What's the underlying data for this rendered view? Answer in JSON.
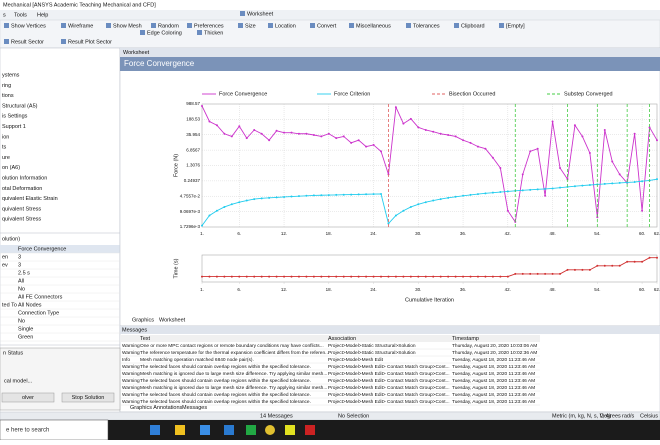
{
  "window": {
    "title": "Mechanical [ANSYS Academic Teaching Mechanical and CFD]"
  },
  "menu": [
    "s",
    "Tools",
    "Help"
  ],
  "toolbar_rows": [
    [
      "Worksheet"
    ],
    [
      "Show Vertices",
      "Wireframe",
      "Show Mesh",
      "Random",
      "Preferences",
      "Size",
      "Location",
      "Convert",
      "Miscellaneous",
      "Tolerances",
      "Clipboard",
      "[Empty]"
    ],
    [
      "Edge Coloring",
      "Thicken"
    ],
    [
      "Result Sector",
      "Result Plot Sector"
    ]
  ],
  "outline": [
    "ystems",
    "ring",
    "tions",
    "Structural (A5)",
    "is Settings",
    "Support 1",
    "ion",
    "ts",
    "ure",
    "on (A6)",
    "olution Information",
    "otal Deformation",
    "quivalent Elastic Strain",
    "quivalent Stress",
    "quivalent Stress"
  ],
  "details": {
    "title": "olution)",
    "rows": [
      {
        "value": "Force Convergence"
      },
      {
        "label": "en",
        "value": "3"
      },
      {
        "label": "ev",
        "value": "3"
      },
      {
        "value": "2.5 s"
      },
      {
        "value": "All"
      },
      {
        "value": "No"
      },
      {
        "value": "All FE Connectors"
      },
      {
        "label": "ted To",
        "value": "All Nodes"
      },
      {
        "value": "Connection Type"
      },
      {
        "value": "No"
      },
      {
        "value": "Single"
      },
      {
        "value": "Green"
      }
    ]
  },
  "dialog": {
    "title": "n Status",
    "text": "cal model...",
    "buttons": [
      "olver",
      "Stop Solution"
    ]
  },
  "worksheet_tab": "Worksheet",
  "chart_data": [
    {
      "type": "line",
      "title": "Force Convergence",
      "ylabel": "Force (N)",
      "log_y": true,
      "grid": true,
      "legend": "top",
      "x": [
        1,
        2,
        3,
        4,
        5,
        6,
        7,
        8,
        9,
        10,
        11,
        12,
        13,
        14,
        15,
        16,
        17,
        18,
        19,
        20,
        21,
        22,
        23,
        24,
        25,
        26,
        27,
        28,
        29,
        30,
        31,
        32,
        33,
        34,
        35,
        36,
        37,
        38,
        39,
        40,
        41,
        42,
        43,
        44,
        45,
        46,
        47,
        48,
        49,
        50,
        51,
        52,
        53,
        54,
        55,
        56,
        57,
        58,
        59,
        60,
        61,
        62
      ],
      "xlim": [
        1,
        62
      ],
      "xticks": [
        {
          "value": 1,
          "label": "1."
        },
        {
          "value": 6,
          "label": "6."
        },
        {
          "value": 12,
          "label": "12."
        },
        {
          "value": 18,
          "label": "18."
        },
        {
          "value": 24,
          "label": "24."
        },
        {
          "value": 30,
          "label": "30."
        },
        {
          "value": 36,
          "label": "36."
        },
        {
          "value": 42,
          "label": "42."
        },
        {
          "value": 48,
          "label": "48."
        },
        {
          "value": 54,
          "label": "54."
        },
        {
          "value": 60,
          "label": "60."
        },
        {
          "value": 62,
          "label": "62."
        }
      ],
      "ylim": [
        0.0017296,
        988.57
      ],
      "yticks": [
        {
          "value": 0.0017296,
          "label": "1.7296e-3"
        },
        {
          "value": 0.0090697,
          "label": "9.0697e-3"
        },
        {
          "value": 0.047557,
          "label": "4.7557e-2"
        },
        0.24937,
        1.3076,
        6.8567,
        35.954,
        188.53,
        988.57
      ],
      "series": [
        {
          "name": "Force Convergence",
          "color": "#cc33cc",
          "markers": true,
          "values": [
            800,
            150,
            100,
            40,
            30,
            90,
            25,
            60,
            40,
            20,
            55,
            45,
            45,
            40,
            40,
            35,
            30,
            40,
            25,
            30,
            15,
            20,
            10,
            12,
            6,
            0.5,
            700,
            120,
            200,
            80,
            60,
            50,
            40,
            35,
            30,
            20,
            15,
            10,
            8,
            3,
            1,
            0.01,
            0.003,
            0.5,
            6,
            8,
            0.05,
            150,
            1,
            0.3,
            100,
            30,
            5,
            0.005,
            60,
            2,
            0.5,
            0.2,
            40,
            0.01,
            80,
            20
          ]
        },
        {
          "name": "Force Criterion",
          "color": "#22ccee",
          "markers": true,
          "values": [
            0.002,
            0.006,
            0.01,
            0.015,
            0.02,
            0.025,
            0.03,
            0.035,
            0.038,
            0.04,
            0.042,
            0.044,
            0.046,
            0.048,
            0.05,
            0.052,
            0.053,
            0.054,
            0.055,
            0.056,
            0.057,
            0.058,
            0.059,
            0.06,
            0.061,
            0.0025,
            0.006,
            0.01,
            0.015,
            0.02,
            0.025,
            0.03,
            0.035,
            0.04,
            0.045,
            0.05,
            0.055,
            0.06,
            0.065,
            0.07,
            0.075,
            0.08,
            0.085,
            0.09,
            0.095,
            0.1,
            0.105,
            0.11,
            0.12,
            0.13,
            0.14,
            0.15,
            0.16,
            0.17,
            0.18,
            0.19,
            0.2,
            0.21,
            0.22,
            0.24,
            0.26,
            0.3
          ]
        },
        {
          "name": "Bisection Occurred",
          "color": "#e06060",
          "events": [
            26
          ]
        },
        {
          "name": "Substep Converged",
          "color": "#44cc44",
          "events": [
            43,
            50,
            54,
            58,
            61
          ]
        }
      ]
    },
    {
      "type": "line",
      "ylabel": "Time (s)",
      "xlabel": "Cumulative Iteration",
      "grid": false,
      "x": [
        1,
        2,
        3,
        4,
        5,
        6,
        7,
        8,
        9,
        10,
        11,
        12,
        13,
        14,
        15,
        16,
        17,
        18,
        19,
        20,
        21,
        22,
        23,
        24,
        25,
        26,
        27,
        28,
        29,
        30,
        31,
        32,
        33,
        34,
        35,
        36,
        37,
        38,
        39,
        40,
        41,
        42,
        43,
        44,
        45,
        46,
        47,
        48,
        49,
        50,
        51,
        52,
        53,
        54,
        55,
        56,
        57,
        58,
        59,
        60,
        61,
        62
      ],
      "xlim": [
        1,
        62
      ],
      "xticks": [
        {
          "value": 1,
          "label": "1."
        },
        {
          "value": 6,
          "label": "6."
        },
        {
          "value": 12,
          "label": "12."
        },
        {
          "value": 18,
          "label": "18."
        },
        {
          "value": 24,
          "label": "24."
        },
        {
          "value": 30,
          "label": "30."
        },
        {
          "value": 36,
          "label": "36."
        },
        {
          "value": 42,
          "label": "42."
        },
        {
          "value": 48,
          "label": "48."
        },
        {
          "value": 54,
          "label": "54."
        },
        {
          "value": 60,
          "label": "60."
        },
        {
          "value": 62,
          "label": "62."
        }
      ],
      "ylim": [
        0,
        1
      ],
      "series": [
        {
          "color": "#d03030",
          "markers": true,
          "values": [
            0.2,
            0.2,
            0.2,
            0.2,
            0.2,
            0.2,
            0.2,
            0.2,
            0.2,
            0.2,
            0.2,
            0.2,
            0.2,
            0.2,
            0.2,
            0.2,
            0.2,
            0.2,
            0.2,
            0.2,
            0.2,
            0.2,
            0.2,
            0.2,
            0.2,
            0.2,
            0.2,
            0.2,
            0.2,
            0.2,
            0.2,
            0.2,
            0.2,
            0.2,
            0.2,
            0.2,
            0.2,
            0.2,
            0.2,
            0.2,
            0.2,
            0.2,
            0.3,
            0.3,
            0.3,
            0.3,
            0.3,
            0.3,
            0.3,
            0.45,
            0.45,
            0.45,
            0.45,
            0.6,
            0.6,
            0.6,
            0.6,
            0.75,
            0.75,
            0.75,
            0.9,
            0.9
          ]
        }
      ]
    }
  ],
  "view_tabs": [
    "Graphics",
    "Worksheet"
  ],
  "messages": {
    "title": "Messages",
    "columns": [
      "Text",
      "Association",
      "Timestamp"
    ],
    "rows": [
      [
        "Warning",
        "One or more MPC contact regions or remote boundary conditions may have conflicts...",
        "Project>Model>Static Structural>Solution",
        "Thursday, August 20, 2020 10:03:06 AM"
      ],
      [
        "Warning",
        "The reference temperature for the thermal expansion coefficient differs from the referen...",
        "Project>Model>Static Structural>Solution",
        "Thursday, August 20, 2020 10:02:36 AM"
      ],
      [
        "Info",
        "Mesh matching operation matched 6840 node pair(s).",
        "Project>Model>Mesh Edit",
        "Tuesday, August 18, 2020 11:23:46 AM"
      ],
      [
        "Warning",
        "The selected faces should contain overlap regions within the specified tolerance.",
        "Project>Model>Mesh Edit> Contact Match Group>Cont...",
        "Tuesday, August 18, 2020 11:23:46 AM"
      ],
      [
        "Warning",
        "Mesh matching is ignored due to large mesh size difference. Try applying similar mesh...",
        "Project>Model>Mesh Edit> Contact Match Group>Cont...",
        "Tuesday, August 18, 2020 11:23:46 AM"
      ],
      [
        "Warning",
        "The selected faces should contain overlap regions within the specified tolerance.",
        "Project>Model>Mesh Edit> Contact Match Group>Cont...",
        "Tuesday, August 18, 2020 11:23:46 AM"
      ],
      [
        "Warning",
        "Mesh matching is ignored due to large mesh size difference. Try applying similar mesh...",
        "Project>Model>Mesh Edit> Contact Match Group>Cont...",
        "Tuesday, August 18, 2020 11:23:46 AM"
      ],
      [
        "Warning",
        "The selected faces should contain overlap regions within the specified tolerance.",
        "Project>Model>Mesh Edit> Contact Match Group>Cont...",
        "Tuesday, August 18, 2020 11:23:46 AM"
      ],
      [
        "Warning",
        "The selected faces should contain overlap regions within the specified tolerance.",
        "Project>Model>Mesh Edit> Contact Match Group>Cont...",
        "Tuesday, August 18, 2020 11:23:46 AM"
      ]
    ]
  },
  "bottom_tabs": [
    "Graphics Annotations",
    "Messages"
  ],
  "status": [
    "14 Messages",
    "No Selection",
    "Metric (m, kg, N, s, V, A)",
    "Degrees",
    "rad/s",
    "Celsius"
  ],
  "taskbar_search": "e here to search"
}
